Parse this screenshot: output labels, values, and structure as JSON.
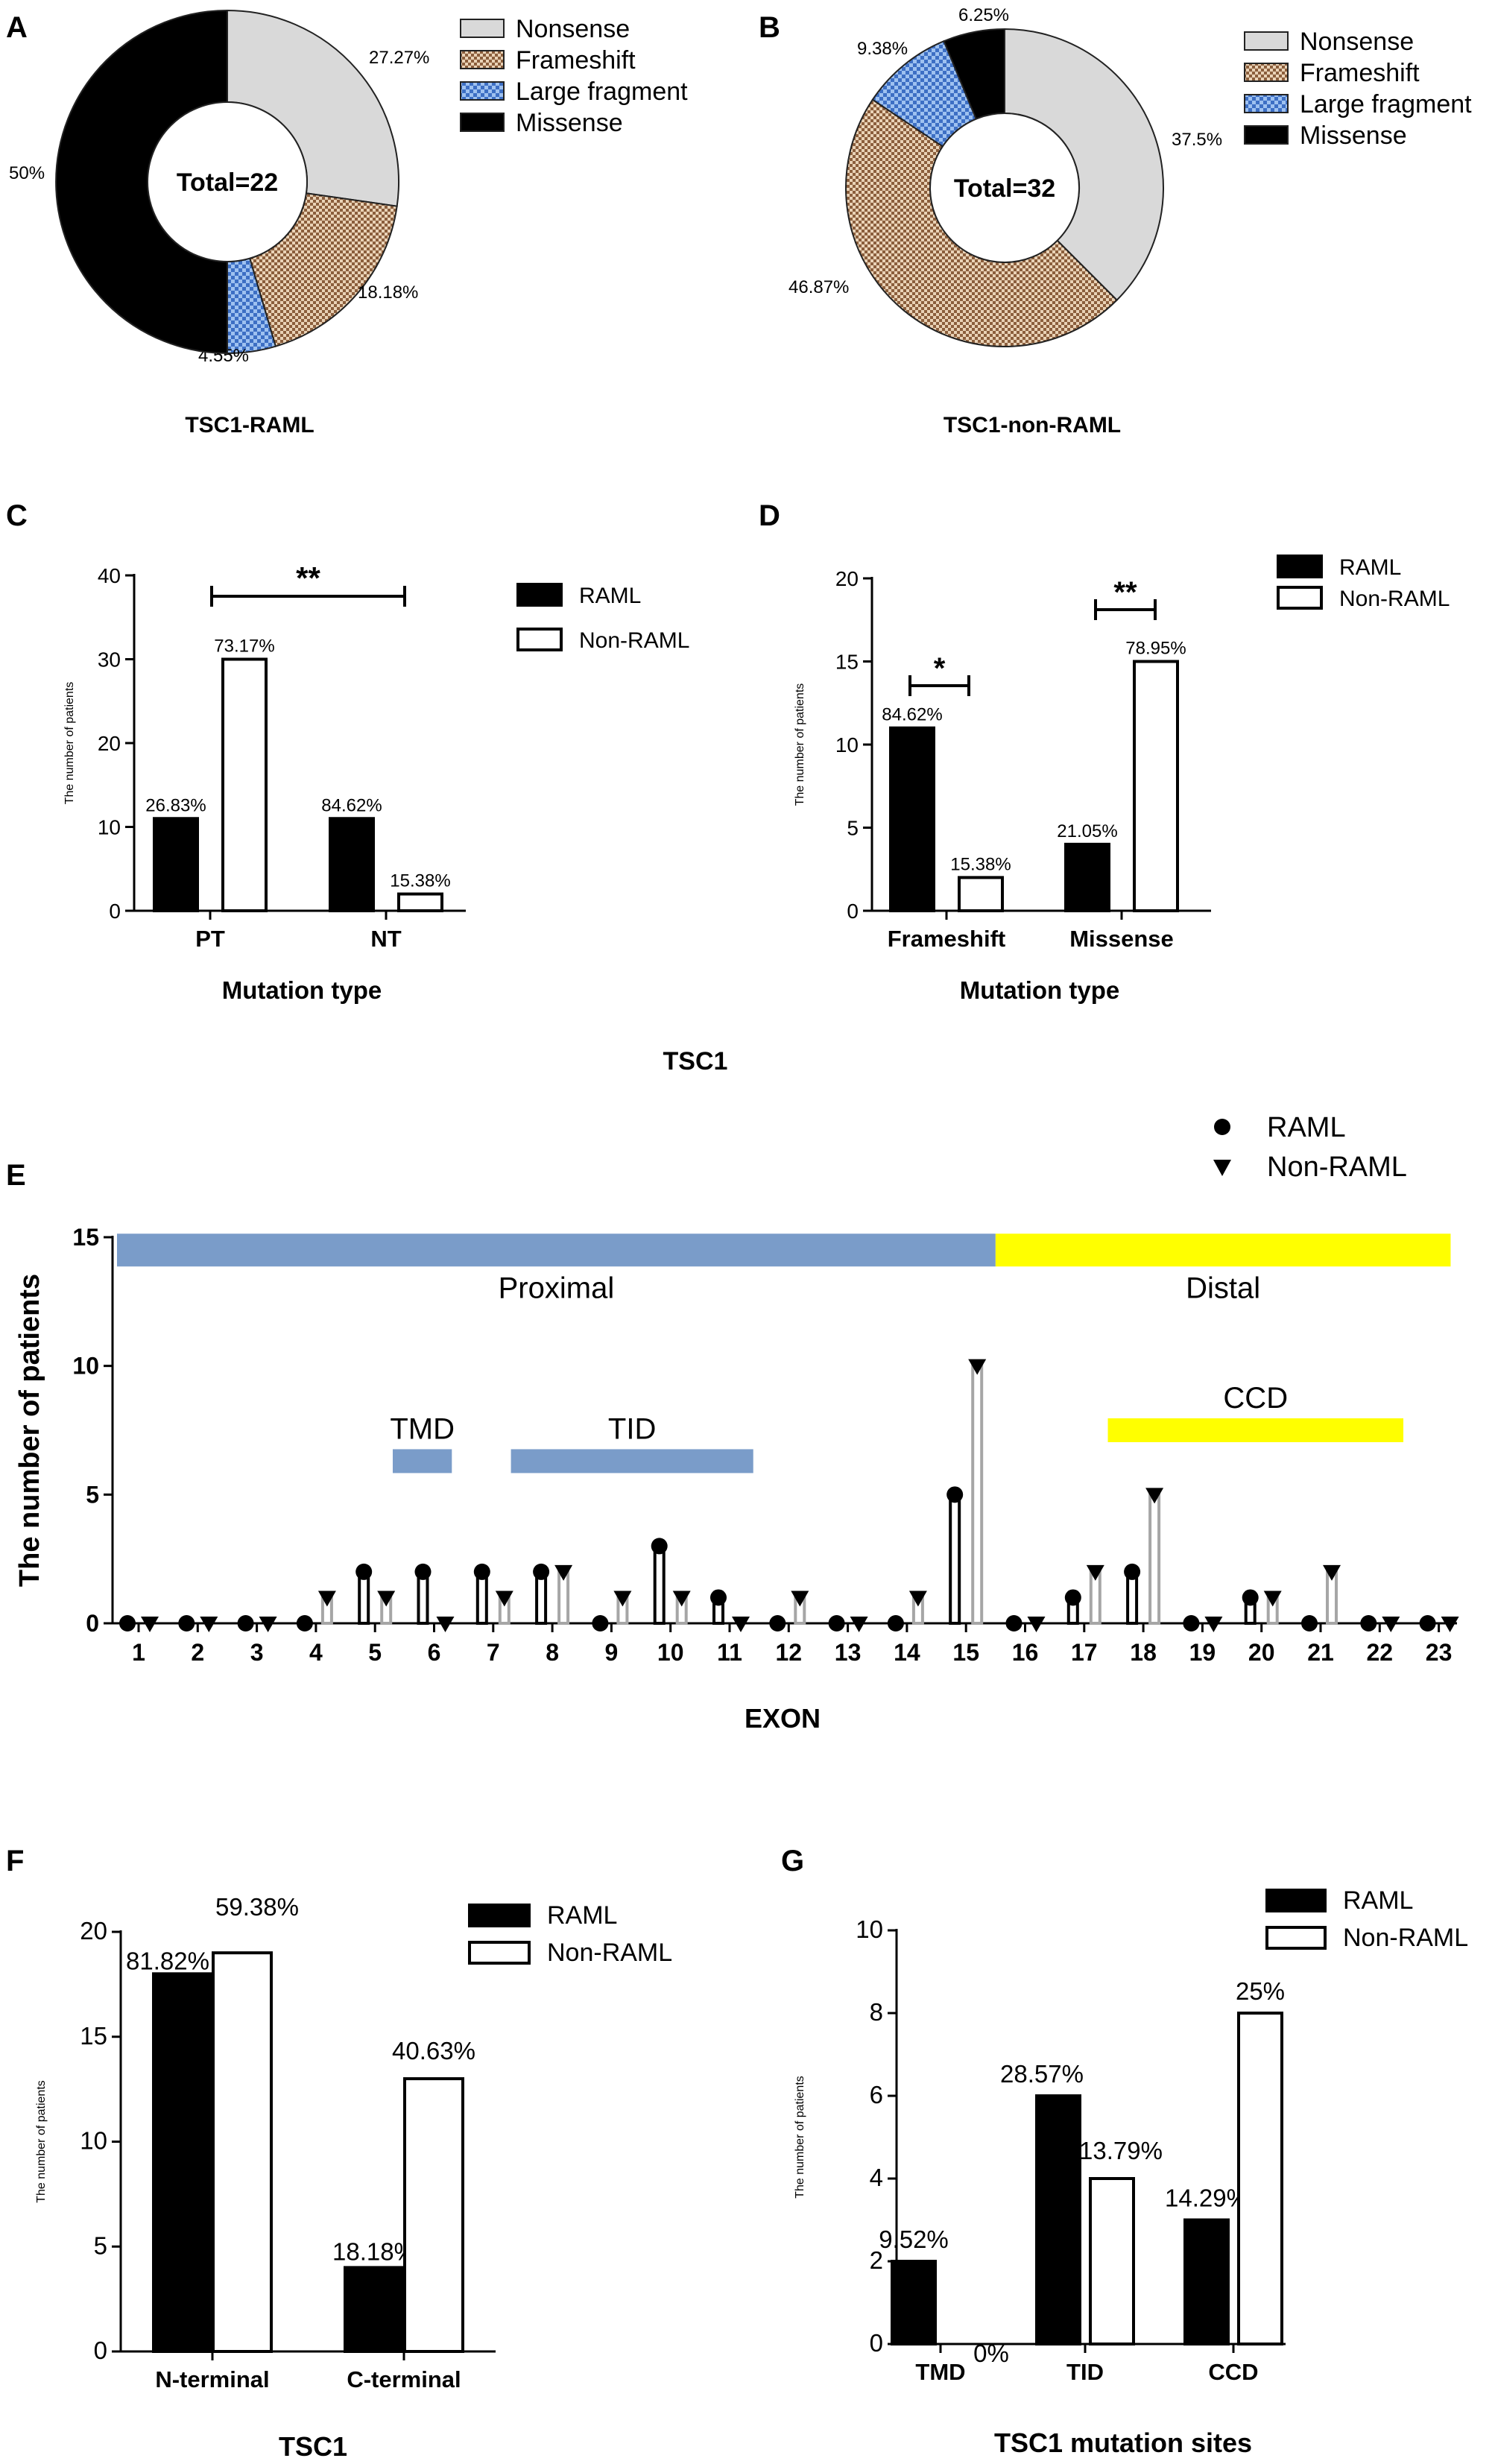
{
  "figure_title": "TSC1",
  "panels": {
    "A": "A",
    "B": "B",
    "C": "C",
    "D": "D",
    "E": "E",
    "F": "F",
    "G": "G"
  },
  "colors": {
    "nonsense": "#d9d9d9",
    "frameshift": "#c8a07a",
    "large_fragment": "#8fb4e8",
    "missense": "#000000",
    "raml": "#000000",
    "non_raml_bar": "#ffffff",
    "non_raml_lollipop": "#a6a6a6",
    "proximal": "#7a9cc9",
    "distal": "#ffff00"
  },
  "chart_data": [
    {
      "id": "A",
      "type": "pie",
      "donut": true,
      "title": "TSC1-RAML",
      "center_label": "Total=22",
      "labels": [
        "Nonsense",
        "Frameshift",
        "Large fragment",
        "Missense"
      ],
      "values": [
        27.27,
        18.18,
        4.55,
        50
      ],
      "value_labels": [
        "27.27%",
        "18.18%",
        "4.55%",
        "50%"
      ],
      "legend": "right"
    },
    {
      "id": "B",
      "type": "pie",
      "donut": true,
      "title": "TSC1-non-RAML",
      "center_label": "Total=32",
      "labels": [
        "Nonsense",
        "Frameshift",
        "Large fragment",
        "Missense"
      ],
      "values": [
        37.5,
        46.87,
        9.38,
        6.25
      ],
      "value_labels": [
        "37.5%",
        "46.87%",
        "9.38%",
        "6.25%"
      ],
      "legend": "right"
    },
    {
      "id": "C",
      "type": "bar",
      "categories": [
        "PT",
        "NT"
      ],
      "series": [
        {
          "name": "RAML",
          "values": [
            11,
            11
          ],
          "labels": [
            "26.83%",
            "84.62%"
          ]
        },
        {
          "name": "Non-RAML",
          "values": [
            30,
            2
          ],
          "labels": [
            "73.17%",
            "15.38%"
          ]
        }
      ],
      "xlabel": "Mutation type",
      "ylabel": "The number of patients",
      "ylim": [
        0,
        40
      ],
      "yticks": [
        0,
        10,
        20,
        30,
        40
      ],
      "significance": [
        {
          "category": "PT-NT",
          "text": "**"
        }
      ],
      "legend": "right"
    },
    {
      "id": "D",
      "type": "bar",
      "categories": [
        "Frameshift",
        "Missense"
      ],
      "series": [
        {
          "name": "RAML",
          "values": [
            11,
            4
          ],
          "labels": [
            "84.62%",
            "21.05%"
          ]
        },
        {
          "name": "Non-RAML",
          "values": [
            2,
            15
          ],
          "labels": [
            "15.38%",
            "78.95%"
          ]
        }
      ],
      "xlabel": "Mutation type",
      "ylabel": "The number of patients",
      "ylim": [
        0,
        20
      ],
      "yticks": [
        0,
        5,
        10,
        15,
        20
      ],
      "significance": [
        {
          "category": "Frameshift",
          "text": "*"
        },
        {
          "category": "Missense",
          "text": "**"
        }
      ],
      "legend": "top-right"
    },
    {
      "id": "E",
      "type": "lollipop",
      "categories": [
        "1",
        "2",
        "3",
        "4",
        "5",
        "6",
        "7",
        "8",
        "9",
        "10",
        "11",
        "12",
        "13",
        "14",
        "15",
        "16",
        "17",
        "18",
        "19",
        "20",
        "21",
        "22",
        "23"
      ],
      "series": [
        {
          "name": "RAML",
          "marker": "circle",
          "values": [
            0,
            0,
            0,
            0,
            2,
            2,
            2,
            2,
            0,
            3,
            1,
            0,
            0,
            0,
            5,
            0,
            1,
            2,
            0,
            1,
            0,
            0,
            0
          ]
        },
        {
          "name": "Non-RAML",
          "marker": "triangle-down",
          "values": [
            0,
            0,
            0,
            1,
            1,
            0,
            1,
            2,
            1,
            1,
            0,
            1,
            0,
            1,
            10,
            0,
            2,
            5,
            0,
            1,
            2,
            0,
            0
          ]
        }
      ],
      "xlabel": "EXON",
      "ylabel": "The number of patients",
      "ylim": [
        0,
        15
      ],
      "yticks": [
        0,
        5,
        10,
        15
      ],
      "regions": [
        {
          "label": "Proximal",
          "exon_start": 0.6,
          "exon_end": 15.5,
          "level": 14.5
        },
        {
          "label": "Distal",
          "exon_start": 15.5,
          "exon_end": 23.2,
          "level": 14.5
        },
        {
          "label": "TMD",
          "exon_start": 5.3,
          "exon_end": 6.3,
          "level": 6.3
        },
        {
          "label": "TID",
          "exon_start": 7.3,
          "exon_end": 11.4,
          "level": 6.3
        },
        {
          "label": "CCD",
          "exon_start": 17.4,
          "exon_end": 22.4,
          "level": 7.5
        }
      ],
      "legend": "top-right"
    },
    {
      "id": "F",
      "type": "bar",
      "categories": [
        "N-terminal",
        "C-terminal"
      ],
      "series": [
        {
          "name": "RAML",
          "values": [
            18,
            4
          ],
          "labels": [
            "81.82%",
            "18.18%"
          ]
        },
        {
          "name": "Non-RAML",
          "values": [
            19,
            13
          ],
          "labels": [
            "59.38%",
            "40.63%"
          ]
        }
      ],
      "xlabel": "TSC1",
      "ylabel": "The number of patients",
      "ylim": [
        0,
        20
      ],
      "yticks": [
        0,
        5,
        10,
        15,
        20
      ],
      "legend": "top-right"
    },
    {
      "id": "G",
      "type": "bar",
      "categories": [
        "TMD",
        "TID",
        "CCD"
      ],
      "series": [
        {
          "name": "RAML",
          "values": [
            2,
            6,
            3
          ],
          "labels": [
            "9.52%",
            "28.57%",
            "14.29%"
          ]
        },
        {
          "name": "Non-RAML",
          "values": [
            0,
            4,
            8
          ],
          "labels": [
            "0%",
            "13.79%",
            "25%"
          ]
        }
      ],
      "xlabel": "TSC1 mutation sites",
      "ylabel": "The number of patients",
      "ylim": [
        0,
        10
      ],
      "yticks": [
        0,
        2,
        4,
        6,
        8,
        10
      ],
      "legend": "top-right"
    }
  ]
}
